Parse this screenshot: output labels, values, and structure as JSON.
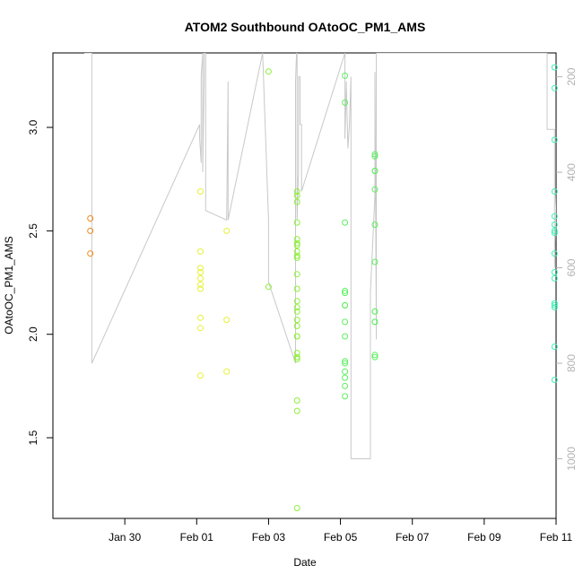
{
  "chart_data": {
    "type": "scatter",
    "title": "ATOM2 Southbound OAtoOC_PM1_AMS",
    "xlabel": "Date",
    "ylabel": "OAtoOC_PM1_AMS",
    "x_ticks": [
      "Jan 30",
      "Feb 01",
      "Feb 03",
      "Feb 05",
      "Feb 07",
      "Feb 09",
      "Feb 11"
    ],
    "y_ticks": [
      "1.5",
      "2.0",
      "2.5",
      "3.0"
    ],
    "right_ticks": [
      "200",
      "400",
      "600",
      "800",
      "1000"
    ],
    "xlim_days": [
      0,
      14.0
    ],
    "ylim": [
      1.11,
      3.36
    ],
    "right_lim": [
      1125,
      150
    ],
    "grid": false,
    "colors": {
      "axis": "#000000",
      "line": "#c8c8c8",
      "right_axis": "#b3b3b3"
    },
    "series": [
      {
        "color": "#ee8a1e",
        "x": [
          "Jan 29 01:00",
          "Jan 29 01:00",
          "Jan 29 01:00"
        ],
        "y": [
          2.56,
          2.5,
          2.39
        ]
      },
      {
        "color": "#e5f233",
        "x": [
          "Feb 01 02:30",
          "Feb 01 02:30",
          "Feb 01 02:30",
          "Feb 01 02:30",
          "Feb 01 02:30",
          "Feb 01 02:30",
          "Feb 01 02:30",
          "Feb 01 02:30",
          "Feb 01 02:30",
          "Feb 01 02:30",
          "Feb 01 20:00",
          "Feb 01 20:00",
          "Feb 01 20:00"
        ],
        "y": [
          2.69,
          2.4,
          2.32,
          2.3,
          2.27,
          2.24,
          2.22,
          2.08,
          2.03,
          1.8,
          2.5,
          2.07,
          1.82
        ]
      },
      {
        "color": "#8ef03a",
        "x": [
          "Feb 03 00:00",
          "Feb 03 00:00",
          "Feb 03 19:00",
          "Feb 03 19:00",
          "Feb 03 19:00",
          "Feb 03 19:00",
          "Feb 03 19:00",
          "Feb 03 19:00",
          "Feb 03 19:00",
          "Feb 03 19:00",
          "Feb 03 19:00",
          "Feb 03 19:00",
          "Feb 03 19:00",
          "Feb 03 19:00",
          "Feb 03 19:00",
          "Feb 03 19:00",
          "Feb 03 19:00",
          "Feb 03 19:00",
          "Feb 03 19:00",
          "Feb 03 19:00",
          "Feb 03 19:00",
          "Feb 03 19:00",
          "Feb 03 19:00",
          "Feb 03 19:00",
          "Feb 03 19:00",
          "Feb 03 19:00",
          "Feb 03 19:00"
        ],
        "y": [
          3.27,
          2.23,
          2.69,
          2.67,
          2.64,
          2.54,
          2.46,
          2.44,
          2.43,
          2.4,
          2.38,
          2.37,
          2.29,
          2.22,
          2.16,
          2.13,
          2.11,
          2.07,
          2.04,
          1.99,
          1.99,
          1.91,
          1.89,
          1.88,
          1.68,
          1.63,
          1.16
        ]
      },
      {
        "color": "#5cf05e",
        "x": [
          "Feb 05 03:00",
          "Feb 05 03:00",
          "Feb 05 03:00",
          "Feb 05 03:00",
          "Feb 05 03:00",
          "Feb 05 03:00",
          "Feb 05 03:00",
          "Feb 05 03:00",
          "Feb 05 03:00",
          "Feb 05 03:00",
          "Feb 05 03:00",
          "Feb 05 03:00",
          "Feb 05 03:00",
          "Feb 05 03:00",
          "Feb 05 03:00",
          "Feb 05 23:00",
          "Feb 05 23:00",
          "Feb 05 23:00",
          "Feb 05 23:00",
          "Feb 05 23:00",
          "Feb 05 23:00",
          "Feb 05 23:00",
          "Feb 05 23:00",
          "Feb 05 23:00",
          "Feb 05 23:00",
          "Feb 05 23:00",
          "Feb 05 23:00",
          "Feb 05 23:00"
        ],
        "y": [
          3.25,
          3.12,
          2.54,
          2.21,
          2.2,
          2.14,
          2.14,
          2.06,
          1.99,
          1.87,
          1.86,
          1.82,
          1.79,
          1.75,
          1.7,
          2.87,
          2.86,
          2.79,
          2.79,
          2.7,
          2.53,
          2.35,
          2.11,
          2.11,
          2.06,
          2.06,
          1.9,
          1.89
        ]
      },
      {
        "color": "#3ef0b5",
        "x": [
          "Feb 10 23:00",
          "Feb 10 23:00",
          "Feb 10 23:00",
          "Feb 10 23:00",
          "Feb 10 23:00",
          "Feb 10 23:00",
          "Feb 10 23:00",
          "Feb 10 23:00",
          "Feb 10 23:00",
          "Feb 10 23:00",
          "Feb 10 23:00",
          "Feb 10 23:00",
          "Feb 10 23:00",
          "Feb 10 23:00",
          "Feb 10 23:00",
          "Feb 10 23:00"
        ],
        "y": [
          3.29,
          3.19,
          2.94,
          2.69,
          2.57,
          2.53,
          2.5,
          2.49,
          2.39,
          2.3,
          2.27,
          2.15,
          2.14,
          2.13,
          1.94,
          1.78
        ]
      }
    ],
    "altitude_line": {
      "color": "#c8c8c8",
      "x": [
        "Jan 28 21:00",
        "Jan 29 02:00",
        "Jan 29 02:00",
        "Feb 01 02:00",
        "Feb 01 02:00",
        "Feb 01 03:00",
        "Feb 01 03:00",
        "Feb 01 04:00",
        "Feb 01 04:00",
        "Feb 01 05:00",
        "Feb 01 05:00",
        "Feb 01 06:00",
        "Feb 01 06:00",
        "Feb 01 20:00",
        "Feb 01 21:00",
        "Feb 01 21:00",
        "Feb 02 20:00",
        "Feb 02 20:00",
        "Feb 03 00:00",
        "Feb 03 00:00",
        "Feb 03 18:00",
        "Feb 03 18:00",
        "Feb 03 19:00",
        "Feb 03 19:00",
        "Feb 03 20:00",
        "Feb 03 20:00",
        "Feb 03 21:00",
        "Feb 03 21:00",
        "Feb 03 22:00",
        "Feb 03 22:00",
        "Feb 05 03:00",
        "Feb 05 03:00",
        "Feb 05 04:00",
        "Feb 05 04:00",
        "Feb 05 05:00",
        "Feb 05 05:00",
        "Feb 05 06:00",
        "Feb 05 07:00",
        "Feb 05 07:00",
        "Feb 05 20:00",
        "Feb 05 20:00",
        "Feb 05 23:00",
        "Feb 05 23:00",
        "Feb 06 00:00",
        "Feb 06 00:00",
        "Feb 10 18:00",
        "Feb 10 18:00",
        "Feb 10 23:00",
        "Feb 10 23:00",
        "Feb 11 01:00",
        "Feb 11 01:00"
      ],
      "altitude": [
        150,
        150,
        800,
        300,
        330,
        380,
        200,
        150,
        400,
        200,
        150,
        150,
        480,
        500,
        210,
        500,
        150,
        150,
        500,
        630,
        800,
        210,
        120,
        500,
        400,
        200,
        200,
        300,
        300,
        440,
        150,
        330,
        210,
        220,
        350,
        350,
        300,
        200,
        1000,
        1000,
        650,
        450,
        190,
        750,
        150,
        150,
        310,
        310,
        600,
        350,
        1000
      ]
    }
  }
}
